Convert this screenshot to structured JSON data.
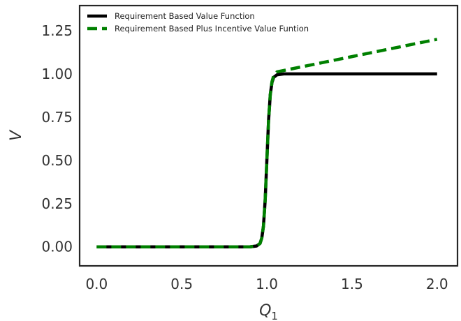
{
  "chart_data": {
    "type": "line",
    "title": "",
    "xlabel": "Q",
    "xlabel_subscript": "1",
    "ylabel": "V",
    "xlim": [
      -0.1,
      2.12
    ],
    "ylim": [
      -0.11,
      1.395
    ],
    "xticks": [
      0.0,
      0.5,
      1.0,
      1.5,
      2.0
    ],
    "xtick_labels": [
      "0.0",
      "0.5",
      "1.0",
      "1.5",
      "2.0"
    ],
    "yticks": [
      0.0,
      0.25,
      0.5,
      0.75,
      1.0,
      1.25
    ],
    "ytick_labels": [
      "0.00",
      "0.25",
      "0.50",
      "0.75",
      "1.00",
      "1.25"
    ],
    "grid": false,
    "legend_position": "top-left",
    "series": [
      {
        "name": "Requirement Based Value Function",
        "color": "#000000",
        "style": "solid",
        "x": [
          0.0,
          0.5,
          0.9,
          0.94,
          0.96,
          0.97,
          0.98,
          0.99,
          1.0,
          1.01,
          1.02,
          1.03,
          1.04,
          1.06,
          1.1,
          1.5,
          2.0
        ],
        "y": [
          0.0,
          0.0,
          0.0,
          0.005,
          0.02,
          0.05,
          0.12,
          0.27,
          0.5,
          0.73,
          0.88,
          0.95,
          0.98,
          0.995,
          1.0,
          1.0,
          1.0
        ]
      },
      {
        "name": "Requirement Based Plus Incentive Value Funtion",
        "color": "#008000",
        "style": "dashed",
        "x": [
          0.0,
          0.5,
          0.9,
          0.94,
          0.96,
          0.97,
          0.98,
          0.99,
          1.0,
          1.01,
          1.02,
          1.03,
          1.04,
          1.06,
          1.1,
          1.5,
          2.0
        ],
        "y": [
          0.0,
          0.0,
          0.0,
          0.005,
          0.02,
          0.05,
          0.12,
          0.27,
          0.5,
          0.73,
          0.88,
          0.955,
          0.99,
          1.012,
          1.02,
          1.1,
          1.2
        ]
      }
    ]
  }
}
